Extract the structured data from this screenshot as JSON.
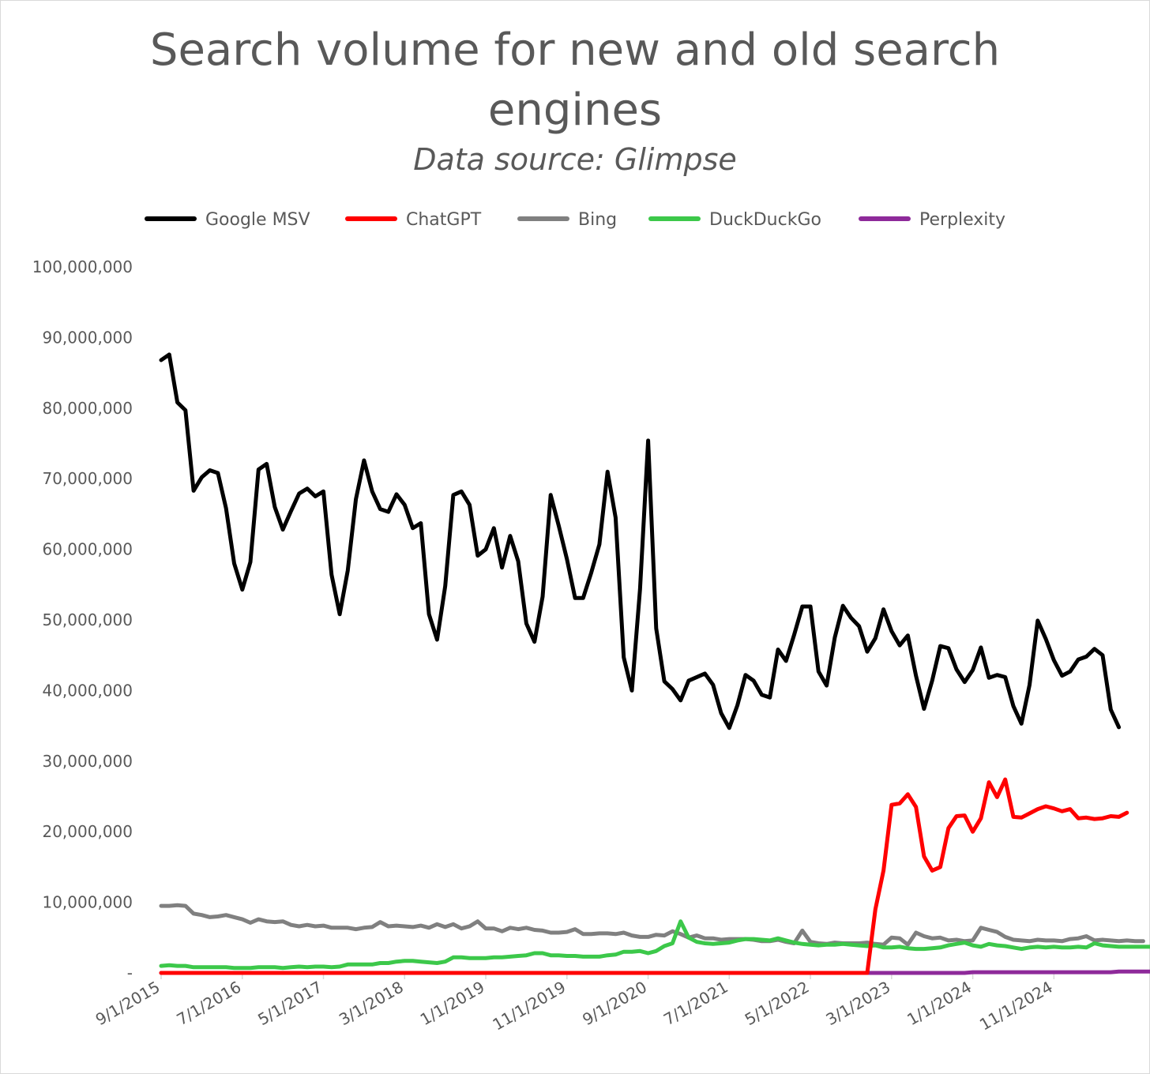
{
  "chart_data": {
    "type": "line",
    "title_line1": "Search volume for new and old search",
    "title_line2": "engines",
    "subtitle": "Data source: Glimpse",
    "ylim": [
      0,
      100000000
    ],
    "yticks": [
      0,
      10000000,
      20000000,
      30000000,
      40000000,
      50000000,
      60000000,
      70000000,
      80000000,
      90000000,
      100000000
    ],
    "ytick_labels": [
      "-",
      "10,000,000",
      "20,000,000",
      "30,000,000",
      "40,000,000",
      "50,000,000",
      "60,000,000",
      "70,000,000",
      "80,000,000",
      "90,000,000",
      "100,000,000"
    ],
    "xlim": [
      "2015-09-01",
      "2025-05-01"
    ],
    "xtick_labels": [
      "9/1/2015",
      "7/1/2016",
      "5/1/2017",
      "3/1/2018",
      "1/1/2019",
      "11/1/2019",
      "9/1/2020",
      "7/1/2021",
      "5/1/2022",
      "3/1/2023",
      "1/1/2024",
      "11/1/2024"
    ],
    "x_start": "2015-09",
    "x_frequency": "monthly",
    "legend_position": "top",
    "grid": false,
    "series": [
      {
        "name": "Google MSV",
        "color": "#000000",
        "values": [
          86800000,
          87600000,
          80800000,
          79700000,
          68300000,
          70200000,
          71200000,
          70800000,
          65800000,
          58000000,
          54300000,
          58200000,
          71300000,
          72100000,
          66000000,
          62800000,
          65400000,
          67900000,
          68600000,
          67500000,
          68200000,
          56400000,
          50800000,
          57000000,
          67100000,
          72600000,
          68200000,
          65700000,
          65300000,
          67800000,
          66300000,
          63000000,
          63700000,
          50800000,
          47200000,
          54800000,
          67700000,
          68200000,
          66300000,
          59100000,
          60000000,
          63000000,
          57400000,
          61900000,
          58300000,
          49500000,
          46900000,
          53300000,
          67700000,
          63300000,
          58600000,
          53100000,
          53100000,
          56700000,
          60700000,
          71000000,
          64500000,
          44700000,
          40000000,
          54300000,
          75400000,
          48800000,
          41300000,
          40200000,
          38600000,
          41400000,
          41900000,
          42400000,
          40800000,
          36800000,
          34700000,
          37900000,
          42200000,
          41400000,
          39400000,
          39000000,
          45800000,
          44200000,
          47900000,
          51900000,
          51900000,
          42700000,
          40700000,
          47500000,
          52000000,
          50300000,
          49100000,
          45500000,
          47400000,
          51500000,
          48400000,
          46400000,
          47800000,
          42100000,
          37400000,
          41400000,
          46300000,
          46000000,
          43000000,
          41200000,
          42900000,
          46100000,
          41800000,
          42200000,
          41900000,
          37800000,
          35300000,
          40800000,
          49900000,
          47300000,
          44300000,
          42100000,
          42700000,
          44400000,
          44800000,
          45900000,
          45000000,
          37300000,
          34800000
        ]
      },
      {
        "name": "ChatGPT",
        "color": "#ff0000",
        "values": [
          0,
          0,
          0,
          0,
          0,
          0,
          0,
          0,
          0,
          0,
          0,
          0,
          0,
          0,
          0,
          0,
          0,
          0,
          0,
          0,
          0,
          0,
          0,
          0,
          0,
          0,
          0,
          0,
          0,
          0,
          0,
          0,
          0,
          0,
          0,
          0,
          0,
          0,
          0,
          0,
          0,
          0,
          0,
          0,
          0,
          0,
          0,
          0,
          0,
          0,
          0,
          0,
          0,
          0,
          0,
          0,
          0,
          0,
          0,
          0,
          0,
          0,
          0,
          0,
          0,
          0,
          0,
          0,
          0,
          0,
          0,
          0,
          0,
          0,
          0,
          0,
          0,
          0,
          0,
          0,
          0,
          0,
          0,
          0,
          0,
          0,
          0,
          0,
          9000000,
          14500000,
          23800000,
          24000000,
          25300000,
          23500000,
          16500000,
          14500000,
          15000000,
          20500000,
          22200000,
          22300000,
          20000000,
          21900000,
          27000000,
          24900000,
          27400000,
          22100000,
          22000000,
          22600000,
          23200000,
          23600000,
          23300000,
          22900000,
          23200000,
          21900000,
          22000000,
          21800000,
          21900000,
          22200000,
          22100000,
          22700000
        ]
      },
      {
        "name": "Bing",
        "color": "#808080",
        "values": [
          9500000,
          9500000,
          9600000,
          9500000,
          8400000,
          8200000,
          7900000,
          8000000,
          8200000,
          7900000,
          7600000,
          7100000,
          7600000,
          7300000,
          7200000,
          7300000,
          6800000,
          6600000,
          6800000,
          6600000,
          6700000,
          6400000,
          6400000,
          6400000,
          6200000,
          6400000,
          6500000,
          7200000,
          6600000,
          6700000,
          6600000,
          6500000,
          6700000,
          6400000,
          6900000,
          6500000,
          6900000,
          6300000,
          6600000,
          7300000,
          6300000,
          6300000,
          5900000,
          6400000,
          6200000,
          6400000,
          6100000,
          6000000,
          5700000,
          5700000,
          5800000,
          6200000,
          5500000,
          5500000,
          5600000,
          5600000,
          5500000,
          5700000,
          5300000,
          5100000,
          5100000,
          5400000,
          5300000,
          5900000,
          5500000,
          5000000,
          5300000,
          4900000,
          4900000,
          4700000,
          4800000,
          4800000,
          4800000,
          4700000,
          4500000,
          4500000,
          4700000,
          4400000,
          4200000,
          6000000,
          4400000,
          4200000,
          4100000,
          4300000,
          4200000,
          4200000,
          4200000,
          4300000,
          4100000,
          4000000,
          5000000,
          4900000,
          4000000,
          5700000,
          5200000,
          4900000,
          5000000,
          4600000,
          4700000,
          4500000,
          4600000,
          6400000,
          6100000,
          5800000,
          5100000,
          4700000,
          4600000,
          4500000,
          4700000,
          4600000,
          4600000,
          4500000,
          4800000,
          4900000,
          5200000,
          4600000,
          4700000,
          4600000,
          4500000,
          4600000,
          4500000,
          4500000
        ]
      },
      {
        "name": "DuckDuckGo",
        "color": "#3cc84a",
        "values": [
          1000000,
          1100000,
          1000000,
          1000000,
          800000,
          800000,
          800000,
          800000,
          800000,
          700000,
          700000,
          700000,
          800000,
          800000,
          800000,
          700000,
          800000,
          900000,
          800000,
          900000,
          900000,
          800000,
          900000,
          1200000,
          1200000,
          1200000,
          1200000,
          1400000,
          1400000,
          1600000,
          1700000,
          1700000,
          1600000,
          1500000,
          1400000,
          1600000,
          2200000,
          2200000,
          2100000,
          2100000,
          2100000,
          2200000,
          2200000,
          2300000,
          2400000,
          2500000,
          2800000,
          2800000,
          2500000,
          2500000,
          2400000,
          2400000,
          2300000,
          2300000,
          2300000,
          2500000,
          2600000,
          3000000,
          3000000,
          3100000,
          2800000,
          3100000,
          3800000,
          4200000,
          7300000,
          5000000,
          4400000,
          4200000,
          4100000,
          4200000,
          4300000,
          4600000,
          4800000,
          4800000,
          4700000,
          4600000,
          4900000,
          4600000,
          4300000,
          4100000,
          4000000,
          3900000,
          4000000,
          4000000,
          4100000,
          4000000,
          3900000,
          3800000,
          3900000,
          3600000,
          3600000,
          3700000,
          3500000,
          3400000,
          3400000,
          3500000,
          3600000,
          3900000,
          4100000,
          4300000,
          3900000,
          3700000,
          4100000,
          3900000,
          3800000,
          3600000,
          3400000,
          3600000,
          3700000,
          3600000,
          3700000,
          3600000,
          3600000,
          3700000,
          3600000,
          4200000,
          3900000,
          3800000,
          3700000,
          3700000,
          3700000,
          3700000,
          3700000
        ]
      },
      {
        "name": "Perplexity",
        "color": "#8e2a9a",
        "values": [
          0,
          0,
          0,
          0,
          0,
          0,
          0,
          0,
          0,
          0,
          0,
          0,
          0,
          0,
          0,
          0,
          0,
          0,
          0,
          0,
          0,
          0,
          0,
          0,
          0,
          0,
          0,
          0,
          0,
          0,
          0,
          0,
          0,
          0,
          0,
          0,
          0,
          0,
          0,
          0,
          0,
          0,
          0,
          0,
          0,
          0,
          0,
          0,
          0,
          0,
          0,
          0,
          0,
          0,
          0,
          0,
          0,
          0,
          0,
          0,
          0,
          0,
          0,
          0,
          0,
          0,
          0,
          0,
          0,
          0,
          0,
          0,
          0,
          0,
          0,
          0,
          0,
          0,
          0,
          0,
          0,
          0,
          0,
          0,
          0,
          0,
          0,
          0,
          0,
          0,
          0,
          0,
          0,
          0,
          0,
          0,
          0,
          0,
          0,
          0,
          100000,
          100000,
          100000,
          100000,
          100000,
          100000,
          100000,
          100000,
          100000,
          100000,
          100000,
          100000,
          100000,
          100000,
          100000,
          100000,
          100000,
          100000,
          200000,
          200000,
          200000,
          200000,
          200000
        ]
      }
    ]
  }
}
